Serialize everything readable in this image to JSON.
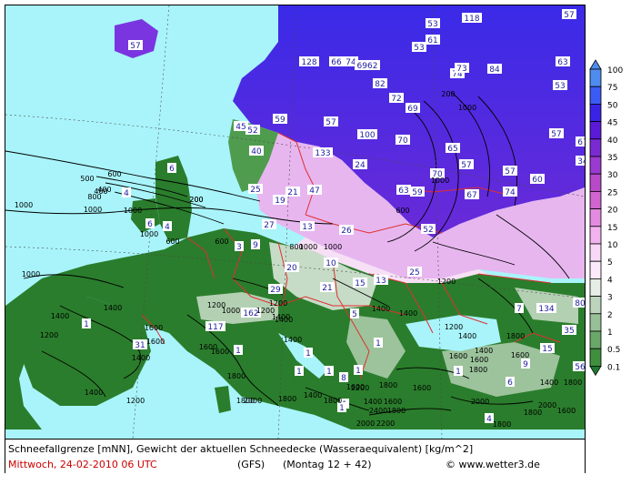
{
  "footer": {
    "description": "Schneefallgrenze [mNN], Gewicht der aktuellen Schneedecke (Wasseraequivalent) [kg/m^2]",
    "date": "Mittwoch, 24-02-2010  06 UTC",
    "model": "(GFS)",
    "run": "(Montag 12 + 42)",
    "credit": "© www.wetter3.de"
  },
  "legend": {
    "steps": [
      {
        "label": "100",
        "color": "#4f8cf0"
      },
      {
        "label": "75",
        "color": "#3b5bf5"
      },
      {
        "label": "50",
        "color": "#3a22e6"
      },
      {
        "label": "45",
        "color": "#5a1ad8"
      },
      {
        "label": "40",
        "color": "#7a2ad2"
      },
      {
        "label": "35",
        "color": "#9a3ad0"
      },
      {
        "label": "30",
        "color": "#b84ac8"
      },
      {
        "label": "25",
        "color": "#d264d2"
      },
      {
        "label": "20",
        "color": "#e48ae0"
      },
      {
        "label": "15",
        "color": "#f1b2ee"
      },
      {
        "label": "10",
        "color": "#f8d8f6"
      },
      {
        "label": "5",
        "color": "#fbeafa"
      },
      {
        "label": "4",
        "color": "#e6ece6"
      },
      {
        "label": "3",
        "color": "#bcd4bc"
      },
      {
        "label": "2",
        "color": "#98c098"
      },
      {
        "label": "1",
        "color": "#6aa86a"
      },
      {
        "label": "0.5",
        "color": "#3f8f3f"
      },
      {
        "label": "0.1",
        "color": "#1f7a2f"
      }
    ]
  },
  "map_labels": {
    "snow_values": [
      {
        "text": "57"
      },
      {
        "text": "118"
      },
      {
        "text": "57"
      },
      {
        "text": "53"
      },
      {
        "text": "61"
      },
      {
        "text": "53"
      },
      {
        "text": "128"
      },
      {
        "text": "66"
      },
      {
        "text": "74"
      },
      {
        "text": "6962"
      },
      {
        "text": "74"
      },
      {
        "text": "73"
      },
      {
        "text": "84"
      },
      {
        "text": "63"
      },
      {
        "text": "82"
      },
      {
        "text": "53"
      },
      {
        "text": "72"
      },
      {
        "text": "69"
      },
      {
        "text": "45"
      },
      {
        "text": "52"
      },
      {
        "text": "59"
      },
      {
        "text": "57"
      },
      {
        "text": "100"
      },
      {
        "text": "70"
      },
      {
        "text": "65"
      },
      {
        "text": "57"
      },
      {
        "text": "67"
      },
      {
        "text": "40"
      },
      {
        "text": "133"
      },
      {
        "text": "24"
      },
      {
        "text": "70"
      },
      {
        "text": "57"
      },
      {
        "text": "57"
      },
      {
        "text": "60"
      },
      {
        "text": "34"
      },
      {
        "text": "6"
      },
      {
        "text": "25"
      },
      {
        "text": "21"
      },
      {
        "text": "47"
      },
      {
        "text": "63"
      },
      {
        "text": "59"
      },
      {
        "text": "67"
      },
      {
        "text": "74"
      },
      {
        "text": "4"
      },
      {
        "text": "19"
      },
      {
        "text": "6"
      },
      {
        "text": "4"
      },
      {
        "text": "27"
      },
      {
        "text": "13"
      },
      {
        "text": "26"
      },
      {
        "text": "52"
      },
      {
        "text": "3"
      },
      {
        "text": "9"
      },
      {
        "text": "20"
      },
      {
        "text": "10"
      },
      {
        "text": "15"
      },
      {
        "text": "13"
      },
      {
        "text": "25"
      },
      {
        "text": "29"
      },
      {
        "text": "21"
      },
      {
        "text": "162"
      },
      {
        "text": "5"
      },
      {
        "text": "7"
      },
      {
        "text": "134"
      },
      {
        "text": "80"
      },
      {
        "text": "117"
      },
      {
        "text": "35"
      },
      {
        "text": "1"
      },
      {
        "text": "31"
      },
      {
        "text": "1"
      },
      {
        "text": "1"
      },
      {
        "text": "1"
      },
      {
        "text": "1"
      },
      {
        "text": "15"
      },
      {
        "text": "1"
      },
      {
        "text": "9"
      },
      {
        "text": "56"
      },
      {
        "text": "8"
      },
      {
        "text": "1"
      },
      {
        "text": "1"
      },
      {
        "text": "6"
      },
      {
        "text": "1"
      },
      {
        "text": "1"
      },
      {
        "text": "4"
      }
    ],
    "elevation_labels": [
      {
        "text": "600"
      },
      {
        "text": "500"
      },
      {
        "text": "400"
      },
      {
        "text": "200"
      },
      {
        "text": "600"
      },
      {
        "text": "1000"
      },
      {
        "text": "1000"
      },
      {
        "text": "600"
      },
      {
        "text": "1000"
      },
      {
        "text": "600"
      },
      {
        "text": "800"
      },
      {
        "text": "1000"
      },
      {
        "text": "1000"
      },
      {
        "text": "1000"
      },
      {
        "text": "200"
      },
      {
        "text": "1200"
      },
      {
        "text": "1000"
      },
      {
        "text": "1200"
      },
      {
        "text": "1400"
      },
      {
        "text": "1400"
      },
      {
        "text": "1600"
      },
      {
        "text": "1600"
      },
      {
        "text": "1400"
      },
      {
        "text": "1200"
      },
      {
        "text": "1200"
      },
      {
        "text": "1400"
      },
      {
        "text": "1400"
      },
      {
        "text": "1200"
      },
      {
        "text": "1400"
      },
      {
        "text": "1600"
      },
      {
        "text": "1600"
      },
      {
        "text": "1800"
      },
      {
        "text": "1800"
      },
      {
        "text": "1800"
      },
      {
        "text": "1400"
      },
      {
        "text": "2000"
      },
      {
        "text": "1600"
      },
      {
        "text": "1400"
      },
      {
        "text": "1600"
      },
      {
        "text": "1800"
      },
      {
        "text": "1800"
      },
      {
        "text": "1600"
      },
      {
        "text": "2000"
      },
      {
        "text": "2200"
      },
      {
        "text": "2000"
      },
      {
        "text": "2200"
      },
      {
        "text": "1800"
      },
      {
        "text": "1800"
      },
      {
        "text": "1800"
      },
      {
        "text": "1600"
      },
      {
        "text": "1400"
      },
      {
        "text": "1800"
      },
      {
        "text": "1600"
      },
      {
        "text": "1800"
      },
      {
        "text": "1400"
      },
      {
        "text": "1400"
      },
      {
        "text": "1400"
      },
      {
        "text": "2400"
      },
      {
        "text": "1200"
      },
      {
        "text": "1400"
      },
      {
        "text": "1800"
      },
      {
        "text": "1600"
      },
      {
        "text": "1600"
      },
      {
        "text": "2000"
      },
      {
        "text": "1000"
      },
      {
        "text": "800"
      },
      {
        "text": "400"
      },
      {
        "text": "200"
      },
      {
        "text": "1000"
      },
      {
        "text": "1000"
      },
      {
        "text": "1400"
      },
      {
        "text": "1200"
      }
    ]
  },
  "colors": {
    "sea": "#a8f4fa",
    "land_green": "#2a7d2c",
    "borders": "#e03030",
    "frame": "#000000"
  }
}
